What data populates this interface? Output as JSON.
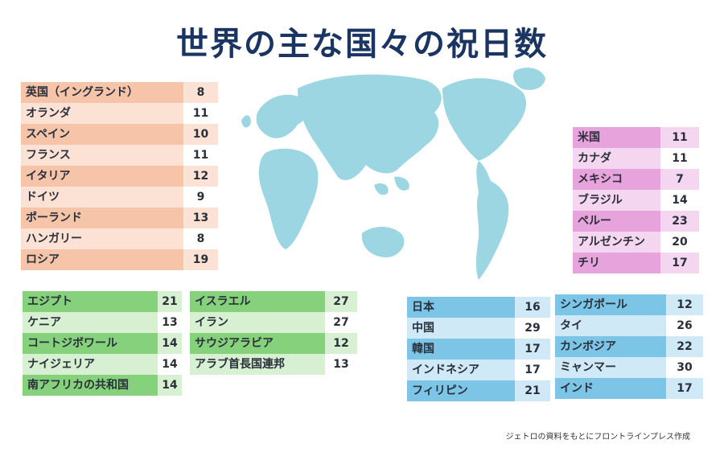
{
  "title": "世界の主な国々の祝日数",
  "credit": "ジェトロの資料をもとにフロントラインプレス作成",
  "colors": {
    "europe": [
      "#f5c4a9",
      "#fbe2d4"
    ],
    "americas": [
      "#e7a3dc",
      "#f5d6f0"
    ],
    "africa_middle_east": [
      "#86d17c",
      "#d8f0d2"
    ],
    "asia": [
      "#7cc5e6",
      "#cfe9f6"
    ],
    "map": "#9cd6e3"
  },
  "chart_data": {
    "type": "table",
    "title": "世界の主な国々の祝日数",
    "groups": [
      {
        "key": "europe",
        "rows": [
          {
            "country": "英国（イングランド）",
            "holidays": 8
          },
          {
            "country": "オランダ",
            "holidays": 11
          },
          {
            "country": "スペイン",
            "holidays": 10
          },
          {
            "country": "フランス",
            "holidays": 11
          },
          {
            "country": "イタリア",
            "holidays": 12
          },
          {
            "country": "ドイツ",
            "holidays": 9
          },
          {
            "country": "ポーランド",
            "holidays": 13
          },
          {
            "country": "ハンガリー",
            "holidays": 8
          },
          {
            "country": "ロシア",
            "holidays": 19
          }
        ]
      },
      {
        "key": "americas",
        "rows": [
          {
            "country": "米国",
            "holidays": 11
          },
          {
            "country": "カナダ",
            "holidays": 11
          },
          {
            "country": "メキシコ",
            "holidays": 7
          },
          {
            "country": "ブラジル",
            "holidays": 14
          },
          {
            "country": "ペルー",
            "holidays": 23
          },
          {
            "country": "アルゼンチン",
            "holidays": 20
          },
          {
            "country": "チリ",
            "holidays": 17
          }
        ]
      },
      {
        "key": "africa_middle_east",
        "rows": [
          {
            "country": "エジプト",
            "holidays": 21
          },
          {
            "country": "ケニア",
            "holidays": 13
          },
          {
            "country": "コートジボワール",
            "holidays": 14
          },
          {
            "country": "ナイジェリア",
            "holidays": 14
          },
          {
            "country": "南アフリカの共和国",
            "holidays": 14
          }
        ]
      },
      {
        "key": "africa_middle_east",
        "rows": [
          {
            "country": "イスラエル",
            "holidays": 27
          },
          {
            "country": "イラン",
            "holidays": 27
          },
          {
            "country": "サウジアラビア",
            "holidays": 12
          },
          {
            "country": "アラブ首長国連邦",
            "holidays": 13
          }
        ]
      },
      {
        "key": "asia",
        "rows": [
          {
            "country": "日本",
            "holidays": 16
          },
          {
            "country": "中国",
            "holidays": 29
          },
          {
            "country": "韓国",
            "holidays": 17
          },
          {
            "country": "インドネシア",
            "holidays": 17
          },
          {
            "country": "フィリピン",
            "holidays": 21
          }
        ]
      },
      {
        "key": "asia",
        "rows": [
          {
            "country": "シンガポール",
            "holidays": 12
          },
          {
            "country": "タイ",
            "holidays": 26
          },
          {
            "country": "カンボジア",
            "holidays": 22
          },
          {
            "country": "ミャンマー",
            "holidays": 30
          },
          {
            "country": "インド",
            "holidays": 17
          }
        ]
      }
    ]
  }
}
